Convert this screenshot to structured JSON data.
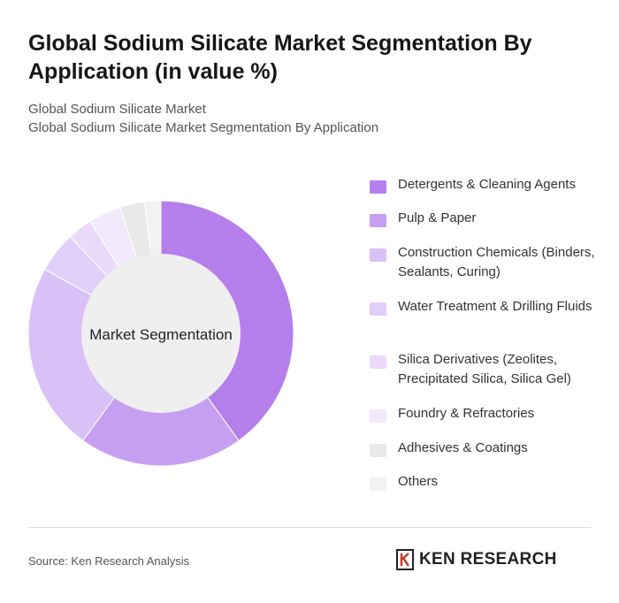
{
  "header": {
    "title": "Global Sodium Silicate Market Segmentation By Application (in value %)",
    "subtitle_line1": "Global Sodium Silicate Market",
    "subtitle_line2": "Global Sodium Silicate Market Segmentation By Application"
  },
  "chart_data": {
    "type": "pie",
    "variant": "donut",
    "center_label": "Market Segmentation",
    "legend_position": "right",
    "categories": [
      "Detergents & Cleaning Agents",
      "Pulp & Paper",
      "Construction Chemicals (Binders, Sealants, Curing)",
      "Water Treatment & Drilling Fluids",
      "Silica Derivatives (Zeolites, Precipitated Silica, Silica Gel)",
      "Foundry & Refractories",
      "Adhesives & Coatings",
      "Others"
    ],
    "values": [
      40,
      20,
      23,
      5,
      3,
      4,
      3,
      2
    ],
    "colors": [
      "#b57feb",
      "#c79ff2",
      "#d9c0f7",
      "#e2cff9",
      "#ead9fa",
      "#f1e9fc",
      "#e9e9e9",
      "#f2f2f2"
    ]
  },
  "legend": {
    "items": [
      {
        "label": "Detergents & Cleaning Agents",
        "color": "#b57feb"
      },
      {
        "label": "Pulp & Paper",
        "color": "#c79ff2"
      },
      {
        "label": "Construction Chemicals (Binders, Sealants, Curing)",
        "color": "#d9c0f7"
      },
      {
        "label": "Water Treatment & Drilling Fluids",
        "color": "#e2cff9"
      },
      {
        "label": "Silica Derivatives (Zeolites, Precipitated Silica, Silica Gel)",
        "color": "#ead9fa"
      },
      {
        "label": "Foundry & Refractories",
        "color": "#f1e9fc"
      },
      {
        "label": "Adhesives & Coatings",
        "color": "#e9e9e9"
      },
      {
        "label": "Others",
        "color": "#f2f2f2"
      }
    ]
  },
  "footer": {
    "source": "Source: Ken Research Analysis",
    "brand": "KEN RESEARCH",
    "brand_icon": "ken-research-logo-icon"
  }
}
